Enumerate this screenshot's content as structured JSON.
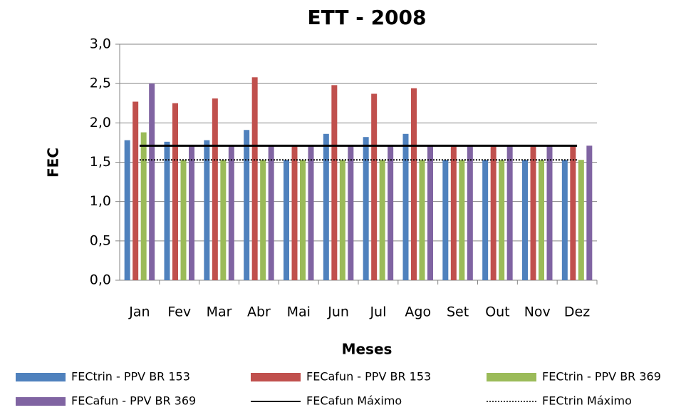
{
  "chart_data": {
    "type": "bar",
    "title": "ETT  - 2008",
    "x_label": "Meses",
    "y_label": "FEC",
    "categories": [
      "Jan",
      "Fev",
      "Mar",
      "Abr",
      "Mai",
      "Jun",
      "Jul",
      "Ago",
      "Set",
      "Out",
      "Nov",
      "Dez"
    ],
    "series": [
      {
        "name": "FECtrin - PPV BR 153",
        "color": "#4f81bd",
        "type": "bar",
        "values": [
          1.78,
          1.76,
          1.78,
          1.91,
          1.53,
          1.86,
          1.82,
          1.86,
          1.53,
          1.53,
          1.53,
          1.53
        ]
      },
      {
        "name": "FECafun - PPV BR 153",
        "color": "#c0504d",
        "type": "bar",
        "values": [
          2.27,
          2.25,
          2.31,
          2.58,
          1.71,
          2.48,
          2.37,
          2.44,
          1.71,
          1.71,
          1.71,
          1.71
        ]
      },
      {
        "name": "FECtrin - PPV BR 369",
        "color": "#9bbb59",
        "type": "bar",
        "values": [
          1.88,
          1.53,
          1.53,
          1.53,
          1.53,
          1.53,
          1.53,
          1.53,
          1.53,
          1.53,
          1.53,
          1.53
        ]
      },
      {
        "name": "FECafun - PPV BR 369",
        "color": "#8064a2",
        "type": "bar",
        "values": [
          2.5,
          1.71,
          1.71,
          1.71,
          1.71,
          1.71,
          1.71,
          1.71,
          1.71,
          1.71,
          1.71,
          1.71
        ]
      },
      {
        "name": "FECafun Máximo",
        "color": "#000000",
        "type": "line",
        "dash": "solid",
        "values": [
          1.71,
          1.71,
          1.71,
          1.71,
          1.71,
          1.71,
          1.71,
          1.71,
          1.71,
          1.71,
          1.71,
          1.71
        ]
      },
      {
        "name": "FECtrin Máximo",
        "color": "#000000",
        "type": "line",
        "dash": "dotted",
        "values": [
          1.53,
          1.53,
          1.53,
          1.53,
          1.53,
          1.53,
          1.53,
          1.53,
          1.53,
          1.53,
          1.53,
          1.53
        ]
      }
    ],
    "ylim": [
      0,
      3
    ],
    "yticks": [
      {
        "value": 0,
        "label": "0,0"
      },
      {
        "value": 0.5,
        "label": "0,5"
      },
      {
        "value": 1,
        "label": "1,0"
      },
      {
        "value": 1.5,
        "label": "1,5"
      },
      {
        "value": 2,
        "label": "2,0"
      },
      {
        "value": 2.5,
        "label": "2,5"
      },
      {
        "value": 3,
        "label": "3,0"
      }
    ],
    "grid": true,
    "legend": "bottom"
  }
}
